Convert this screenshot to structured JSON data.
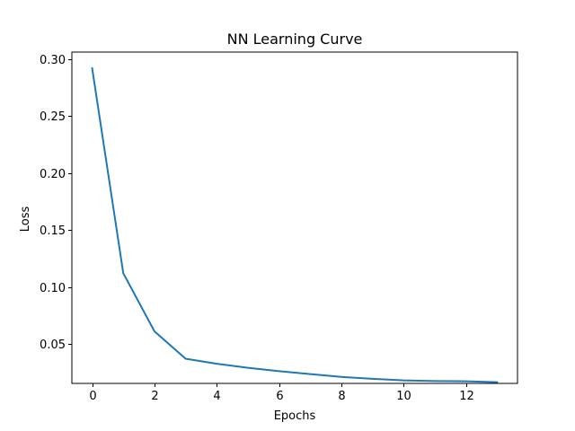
{
  "chart_data": {
    "type": "line",
    "title": "NN Learning Curve",
    "xlabel": "Epochs",
    "ylabel": "Loss",
    "xlim": [
      -0.65,
      13.65
    ],
    "ylim": [
      0.0153,
      0.3061
    ],
    "xticks": [
      0,
      2,
      4,
      6,
      8,
      10,
      12
    ],
    "yticks": [
      0.05,
      0.1,
      0.15,
      0.2,
      0.25,
      0.3
    ],
    "ytick_labels": [
      "0.05",
      "0.10",
      "0.15",
      "0.20",
      "0.25",
      "0.30"
    ],
    "grid": false,
    "series": [
      {
        "color": "#1f77b4",
        "x": [
          0,
          1,
          2,
          3,
          4,
          5,
          6,
          7,
          8,
          9,
          10,
          11,
          12,
          13
        ],
        "values": [
          0.292,
          0.112,
          0.061,
          0.037,
          0.0325,
          0.029,
          0.026,
          0.0235,
          0.021,
          0.0193,
          0.018,
          0.0174,
          0.0172,
          0.0164
        ]
      }
    ]
  }
}
